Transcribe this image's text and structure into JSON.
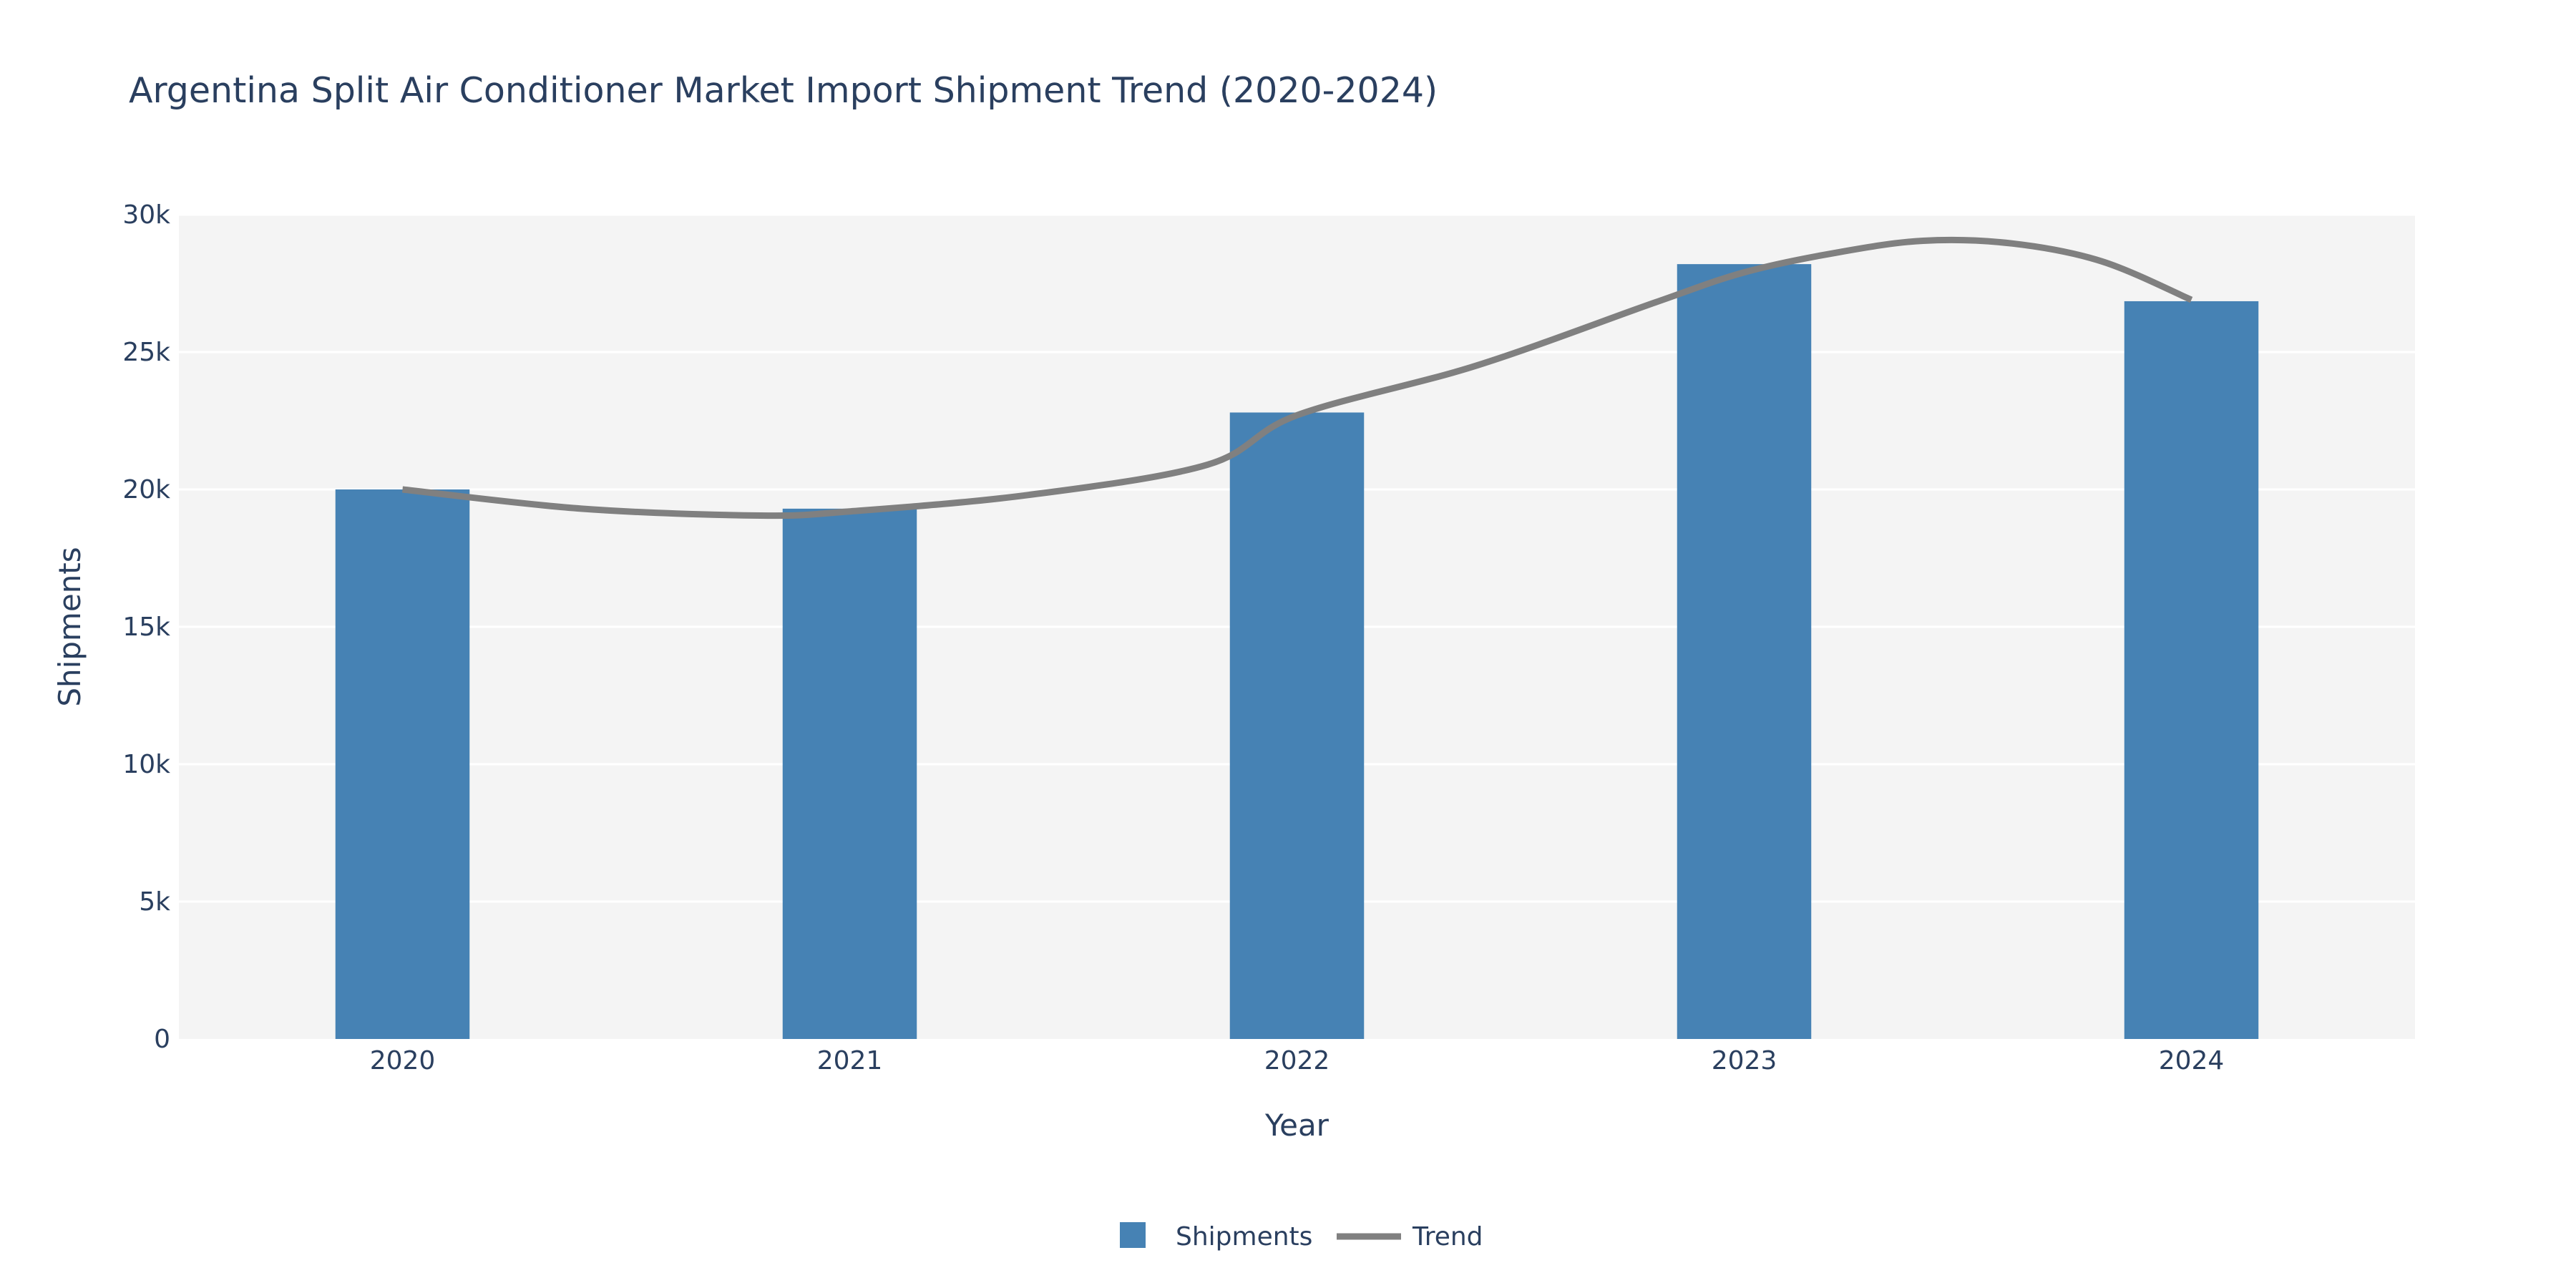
{
  "title": "Argentina Split Air Conditioner Market Import Shipment Trend (2020-2024)",
  "chart_data": {
    "type": "bar",
    "categories": [
      "2020",
      "2021",
      "2022",
      "2023",
      "2024"
    ],
    "series": [
      {
        "name": "Shipments",
        "type": "bar",
        "color": "#4682b4",
        "values": [
          20000,
          19300,
          22800,
          28200,
          26850
        ]
      },
      {
        "name": "Trend",
        "type": "line",
        "smooth": true,
        "color": "#808080",
        "x": [
          2020,
          2020.4,
          2020.8,
          2021,
          2021.4,
          2021.8,
          2022,
          2022.4,
          2022.8,
          2023,
          2023.2,
          2023.4,
          2023.6,
          2023.8,
          2024
        ],
        "values": [
          20000,
          19300,
          19050,
          19200,
          19800,
          20900,
          22700,
          24500,
          26800,
          27900,
          28600,
          29050,
          28950,
          28300,
          26900
        ]
      }
    ],
    "xlabel": "Year",
    "ylabel": "Shipments",
    "ylim": [
      0,
      30000
    ],
    "yticks": [
      0,
      5000,
      10000,
      15000,
      20000,
      25000,
      30000
    ],
    "ytick_labels": [
      "0",
      "5k",
      "10k",
      "15k",
      "20k",
      "25k",
      "30k"
    ],
    "grid": true,
    "plot_background": "#f4f4f4",
    "legend_position": "bottom-center"
  }
}
